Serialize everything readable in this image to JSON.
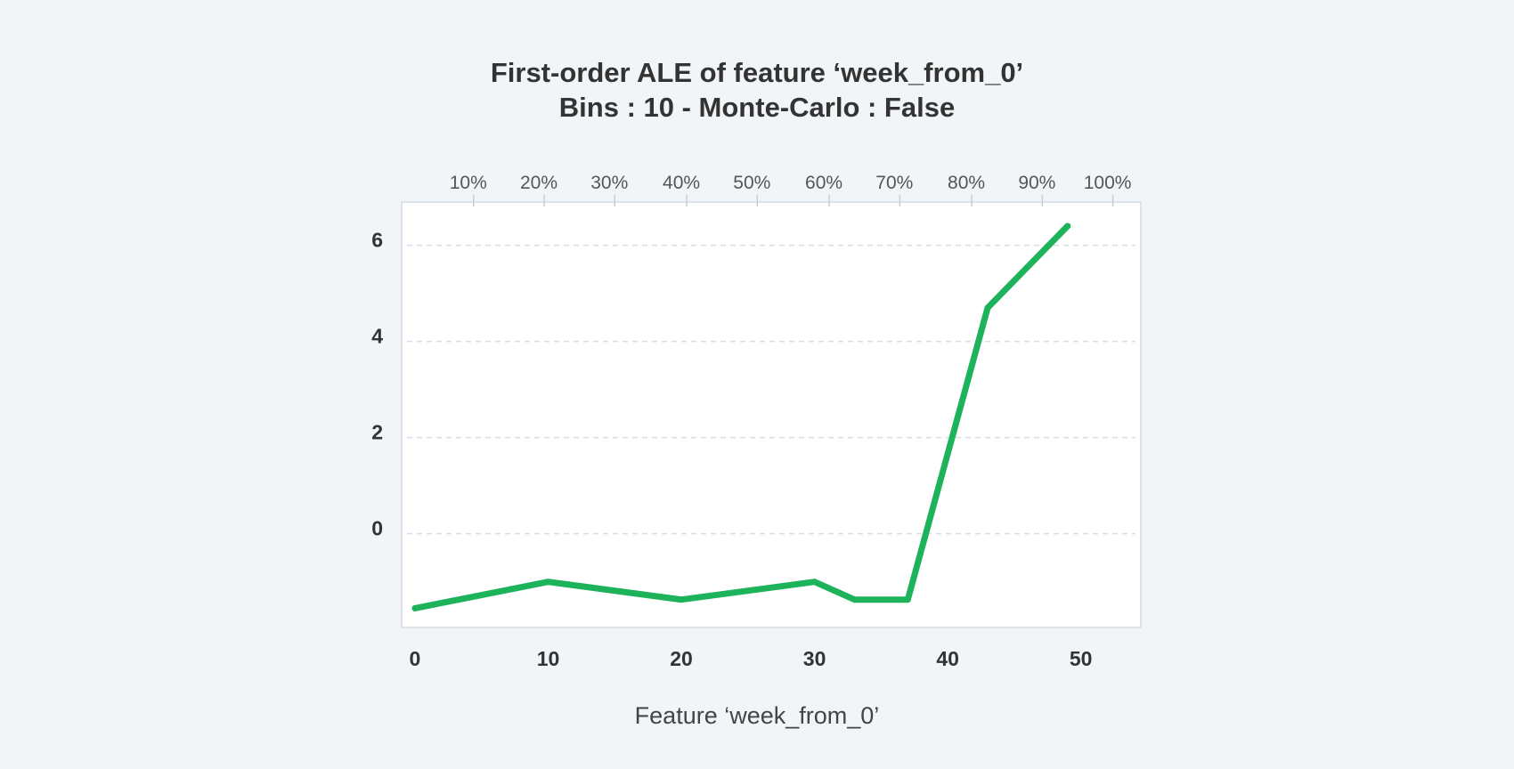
{
  "chart_data": {
    "type": "line",
    "title": "First-order ALE of feature ‘week_from_0’",
    "subtitle": "Bins : 10 - Monte-Carlo : False",
    "xlabel": "Feature ‘week_from_0’",
    "ylabel": "",
    "x": [
      0,
      10,
      20,
      30,
      33,
      37,
      43,
      49
    ],
    "series": [
      {
        "values": [
          -1.55,
          -1.0,
          -1.37,
          -1.0,
          -1.37,
          -1.37,
          4.7,
          6.4
        ],
        "color": "#1db35a"
      }
    ],
    "xlim": [
      -1,
      54.5
    ],
    "ylim": [
      -1.95,
      6.9
    ],
    "xticks": [
      0,
      10,
      20,
      30,
      40,
      50
    ],
    "yticks": [
      0,
      2,
      4,
      6
    ],
    "percentile_ticks": {
      "labels": [
        "10%",
        "20%",
        "30%",
        "40%",
        "50%",
        "60%",
        "70%",
        "80%",
        "90%",
        "100%"
      ],
      "positions": [
        4.4,
        9.7,
        15.0,
        20.4,
        25.7,
        31.1,
        36.4,
        41.8,
        47.1,
        52.4
      ]
    },
    "grid": true,
    "grid_style": "dashed horizontal",
    "legend": "none"
  },
  "colors": {
    "background": "#f1f5f8",
    "plot_background": "#ffffff",
    "plot_border": "#dce3ea",
    "grid": "#d8dde3",
    "line": "#1db35a",
    "text": "#333333"
  }
}
